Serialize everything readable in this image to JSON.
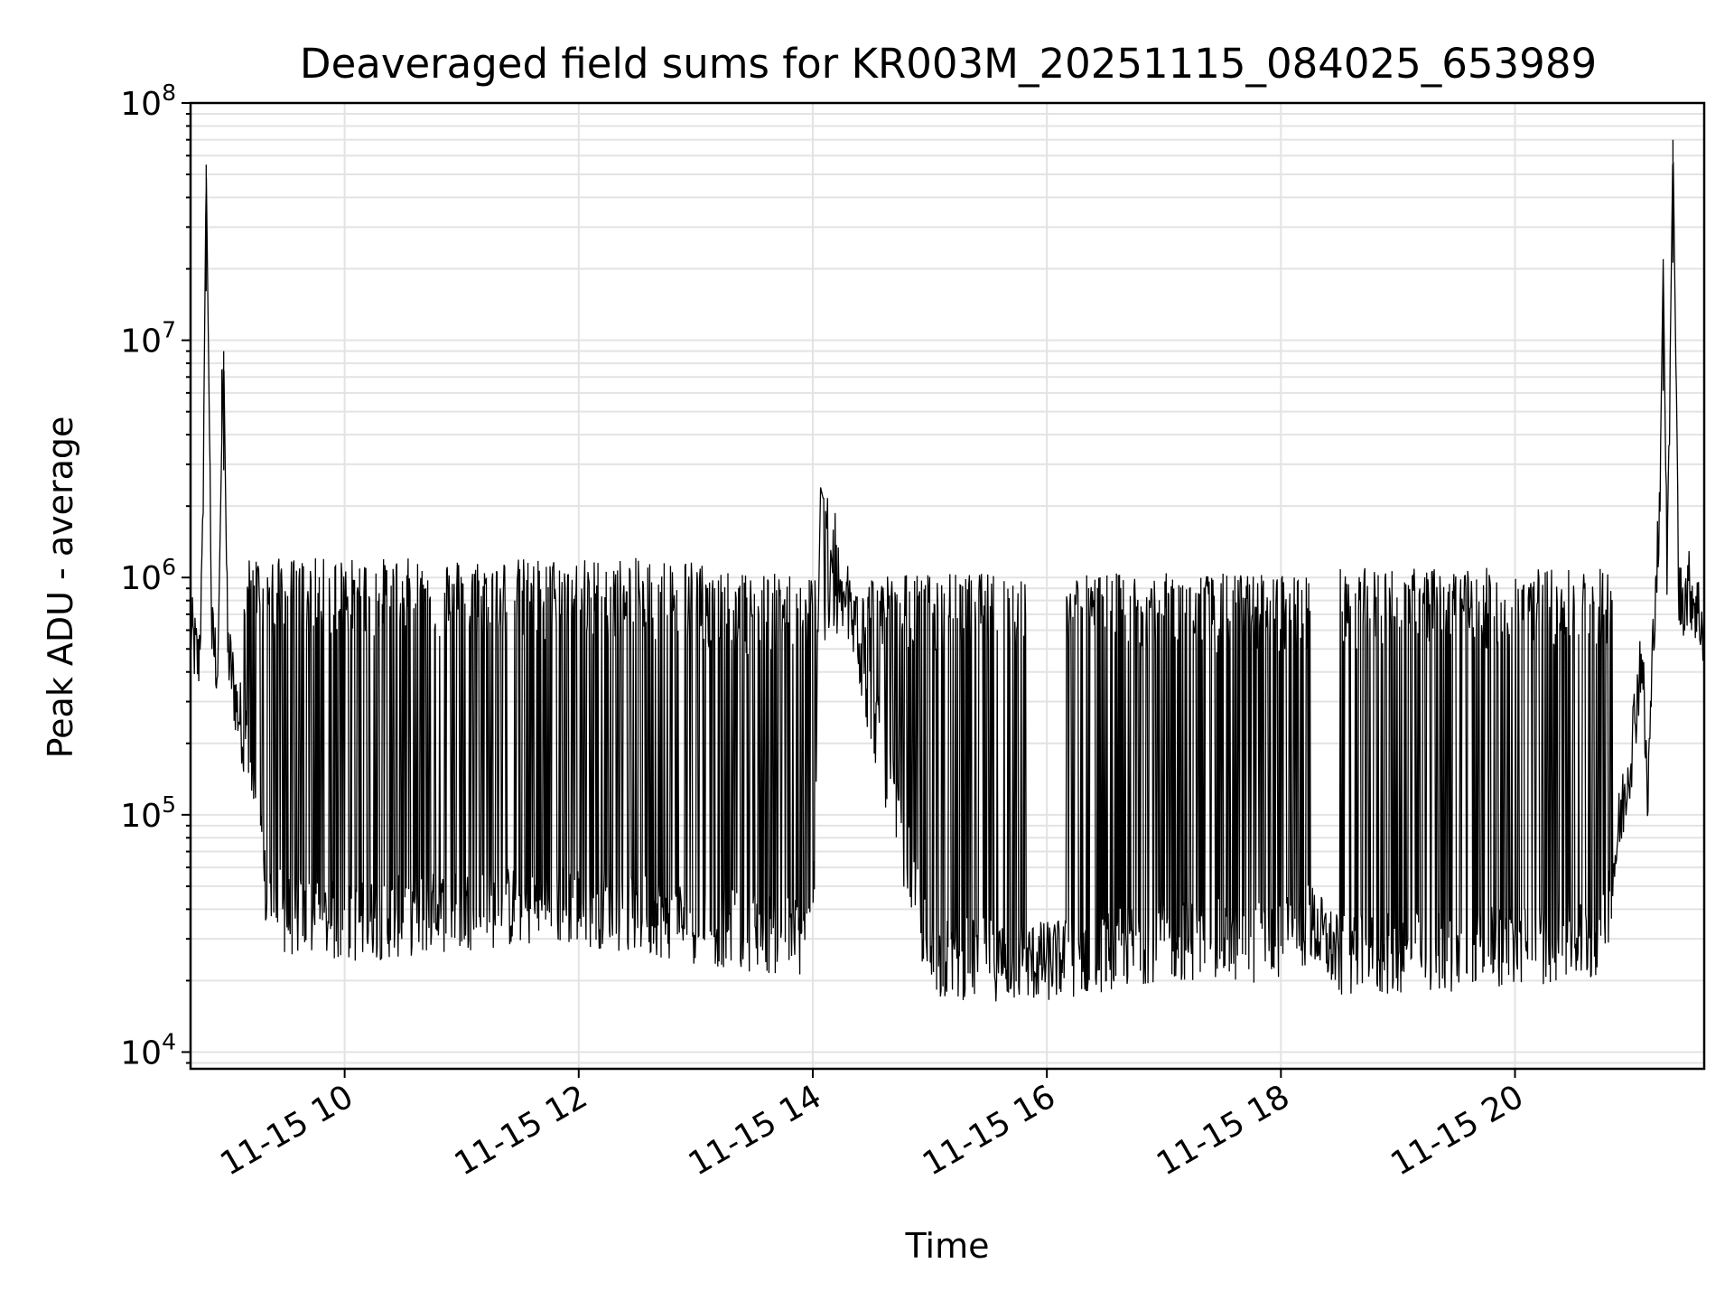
{
  "chart_data": {
    "type": "line",
    "title": "Deaveraged field sums for KR003M_20251115_084025_653989",
    "xlabel": "Time",
    "ylabel": "Peak ADU - average",
    "yscale": "log",
    "ylim": [
      8500,
      100000000
    ],
    "xlim": [
      "2025-11-15 08:41",
      "2025-11-15 21:37"
    ],
    "grid": true,
    "line_color": "#000000",
    "x_ticks": [
      {
        "value": "2025-11-15 10:00",
        "label": "11-15 10"
      },
      {
        "value": "2025-11-15 12:00",
        "label": "11-15 12"
      },
      {
        "value": "2025-11-15 14:00",
        "label": "11-15 14"
      },
      {
        "value": "2025-11-15 16:00",
        "label": "11-15 16"
      },
      {
        "value": "2025-11-15 18:00",
        "label": "11-15 18"
      },
      {
        "value": "2025-11-15 20:00",
        "label": "11-15 20"
      }
    ],
    "y_ticks": [
      {
        "value": 10000,
        "base": "10",
        "exp": "4"
      },
      {
        "value": 100000,
        "base": "10",
        "exp": "5"
      },
      {
        "value": 1000000,
        "base": "10",
        "exp": "6"
      },
      {
        "value": 10000000,
        "base": "10",
        "exp": "7"
      },
      {
        "value": 100000000,
        "base": "10",
        "exp": "8"
      }
    ],
    "series": [
      {
        "points": [
          [
            "2025-11-15 08:41",
            600000
          ],
          [
            "2025-11-15 08:45",
            430000
          ],
          [
            "2025-11-15 08:47",
            1000000
          ],
          [
            "2025-11-15 08:49",
            55000000
          ],
          [
            "2025-11-15 08:52",
            550000
          ],
          [
            "2025-11-15 08:55",
            420000
          ],
          [
            "2025-11-15 08:57",
            3700000
          ],
          [
            "2025-11-15 08:58",
            9000000
          ],
          [
            "2025-11-15 09:00",
            500000
          ],
          [
            "2025-11-15 09:05",
            280000
          ],
          [
            "2025-11-15 09:10",
            200000
          ],
          [
            "2025-11-15 09:15",
            90000
          ],
          [
            "2025-11-15 09:20",
            45000
          ],
          [
            "2025-11-15 09:30",
            38000
          ],
          [
            "2025-11-15 10:00",
            35000
          ],
          [
            "2025-11-15 11:00",
            40000
          ],
          [
            "2025-11-15 12:00",
            42000
          ],
          [
            "2025-11-15 13:00",
            35000
          ],
          [
            "2025-11-15 14:00",
            30000
          ],
          [
            "2025-11-15 14:04",
            2400000
          ],
          [
            "2025-11-15 15:00",
            25000
          ],
          [
            "2025-11-15 16:00",
            24000
          ],
          [
            "2025-11-15 17:00",
            30000
          ],
          [
            "2025-11-15 18:00",
            29000
          ],
          [
            "2025-11-15 18:15",
            35000
          ],
          [
            "2025-11-15 18:30",
            25000
          ],
          [
            "2025-11-15 19:00",
            26000
          ],
          [
            "2025-11-15 20:00",
            28000
          ],
          [
            "2025-11-15 20:45",
            30000
          ],
          [
            "2025-11-15 21:00",
            200000
          ],
          [
            "2025-11-15 21:05",
            500000
          ],
          [
            "2025-11-15 21:08",
            110000
          ],
          [
            "2025-11-15 21:12",
            1000000
          ],
          [
            "2025-11-15 21:14",
            1500000
          ],
          [
            "2025-11-15 21:16",
            22000000
          ],
          [
            "2025-11-15 21:18",
            900000
          ],
          [
            "2025-11-15 21:21",
            70000000
          ],
          [
            "2025-11-15 21:24",
            800000
          ],
          [
            "2025-11-15 21:30",
            900000
          ],
          [
            "2025-11-15 21:37",
            600000
          ]
        ]
      }
    ],
    "bursts": [
      {
        "start": "2025-11-15 09:08",
        "end": "2025-11-15 13:05",
        "low": 30000,
        "high": 1100000
      },
      {
        "start": "2025-11-15 13:05",
        "end": "2025-11-15 15:50",
        "low": 22000,
        "high": 950000
      },
      {
        "start": "2025-11-15 16:10",
        "end": "2025-11-15 18:15",
        "low": 20000,
        "high": 950000
      },
      {
        "start": "2025-11-15 18:30",
        "end": "2025-11-15 20:50",
        "low": 22000,
        "high": 1000000
      }
    ]
  }
}
